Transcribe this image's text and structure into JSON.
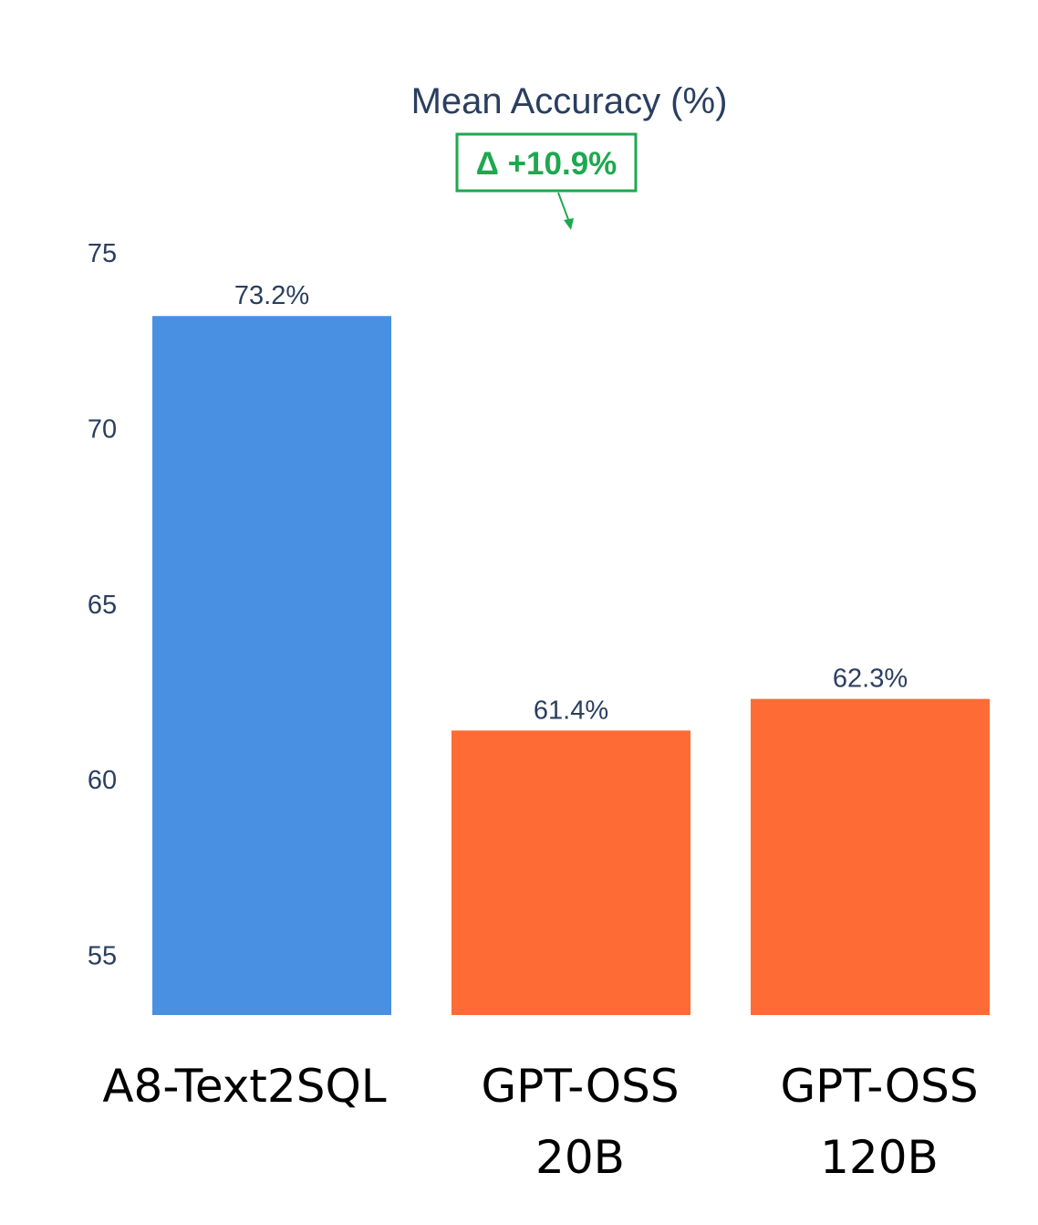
{
  "chart_data": {
    "type": "bar",
    "title": "Mean Accuracy (%)",
    "categories": [
      [
        "A8-Text2SQL"
      ],
      [
        "GPT-OSS",
        "20B"
      ],
      [
        "GPT-OSS",
        "120B"
      ]
    ],
    "values": [
      73.2,
      61.4,
      62.3
    ],
    "value_labels": [
      "73.2%",
      "61.4%",
      "62.3%"
    ],
    "bar_colors": [
      "#4a90e2",
      "#ff6b35",
      "#ff6b35"
    ],
    "yticks": [
      55,
      60,
      65,
      70,
      75
    ],
    "ylim": [
      53.3,
      77
    ],
    "grid": false,
    "xlabel": "",
    "ylabel": "",
    "annotation": {
      "text": "Δ +10.9%",
      "color": "#1ea84f",
      "points_to_category": 1
    }
  }
}
